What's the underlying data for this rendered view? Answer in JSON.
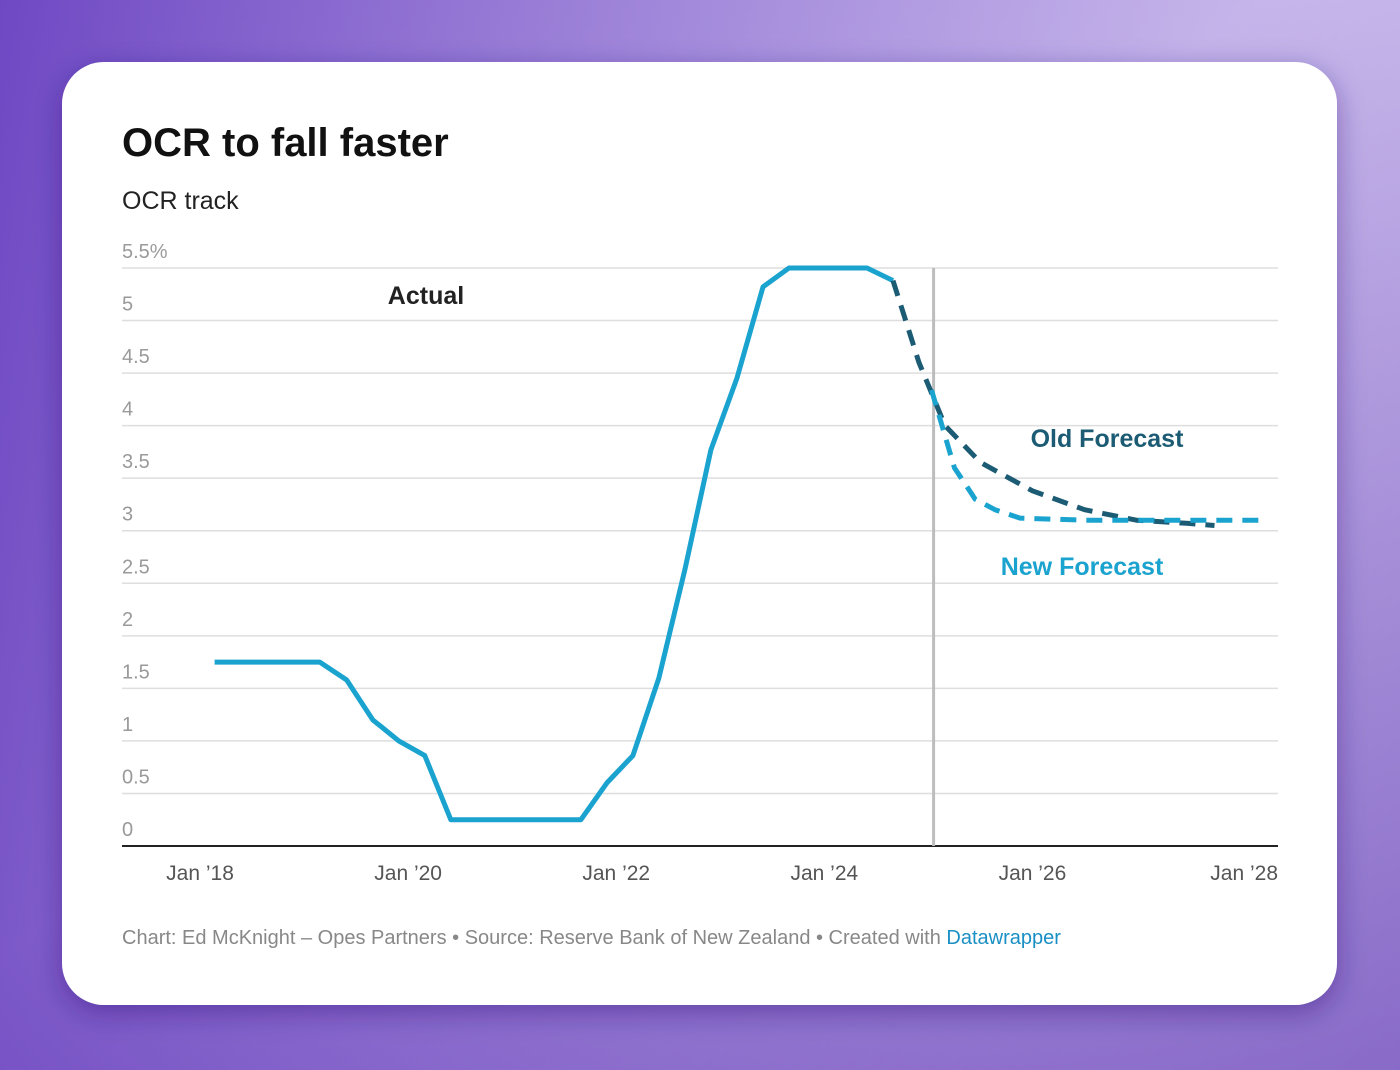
{
  "chart_data": {
    "type": "line",
    "title": "OCR to fall faster",
    "subtitle": "OCR track",
    "xlim": [
      2017.25,
      2028.36
    ],
    "xticks": [
      {
        "value": 2018,
        "label": "Jan ’18"
      },
      {
        "value": 2020,
        "label": "Jan ’20"
      },
      {
        "value": 2022,
        "label": "Jan ’22"
      },
      {
        "value": 2024,
        "label": "Jan ’24"
      },
      {
        "value": 2026,
        "label": "Jan ’26"
      },
      {
        "value": 2028,
        "label": "Jan ’28"
      }
    ],
    "ylim": [
      0,
      5.5
    ],
    "yticks": [
      0,
      0.5,
      1,
      1.5,
      2,
      2.5,
      3,
      3.5,
      4,
      4.5,
      5,
      {
        "value": 5.5,
        "label": "5.5%"
      }
    ],
    "grid": true,
    "vline": 2025.05,
    "series": [
      {
        "name": "Actual",
        "color": "#1ba3cf",
        "style": "solid",
        "x": [
          2018.14,
          2019.15,
          2019.41,
          2019.66,
          2019.91,
          2020.16,
          2020.41,
          2021.66,
          2021.91,
          2022.16,
          2022.41,
          2022.66,
          2022.91,
          2023.16,
          2023.41,
          2023.66,
          2024.41,
          2024.66
        ],
        "values": [
          1.75,
          1.75,
          1.58,
          1.2,
          1.0,
          0.86,
          0.25,
          0.25,
          0.6,
          0.86,
          1.6,
          2.63,
          3.77,
          4.45,
          5.32,
          5.5,
          5.5,
          5.38
        ]
      },
      {
        "name": "Old Forecast",
        "color": "#1c5b74",
        "style": "dashed",
        "x": [
          2024.66,
          2024.91,
          2025.16,
          2025.5,
          2026.0,
          2026.5,
          2027.0,
          2027.5,
          2027.75
        ],
        "values": [
          5.38,
          4.6,
          4.0,
          3.65,
          3.38,
          3.2,
          3.1,
          3.07,
          3.05
        ]
      },
      {
        "name": "New Forecast",
        "color": "#1ba3cf",
        "style": "dashed",
        "x": [
          2025.03,
          2025.25,
          2025.45,
          2025.64,
          2025.88,
          2026.5,
          2027.0,
          2027.5,
          2028.2
        ],
        "values": [
          4.34,
          3.6,
          3.3,
          3.2,
          3.12,
          3.1,
          3.1,
          3.1,
          3.1
        ]
      }
    ],
    "annotations": [
      {
        "text": "Actual",
        "color": "#222222"
      },
      {
        "text": "Old Forecast",
        "color": "#1c5b74"
      },
      {
        "text": "New Forecast",
        "color": "#1ba3cf"
      }
    ],
    "footer": "Chart: Ed McKnight – Opes Partners • Source: Reserve Bank of New Zealand • Created with",
    "footer_link": "Datawrapper"
  }
}
